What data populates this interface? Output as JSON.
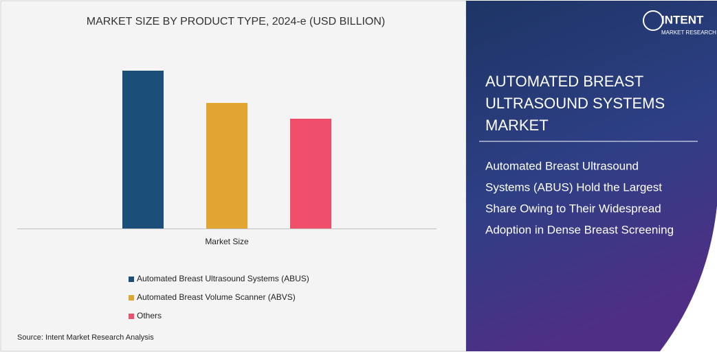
{
  "chart_data": {
    "type": "bar",
    "title": "MARKET SIZE BY PRODUCT TYPE, 2024-e (USD BILLION)",
    "categories": [
      "Market Size"
    ],
    "series": [
      {
        "name": "Automated Breast Ultrasound Systems (ABUS)",
        "color": "#1b4f7a",
        "values": [
          230
        ]
      },
      {
        "name": "Automated Breast Volume Scanner (ABVS)",
        "color": "#e3a531",
        "values": [
          183
        ]
      },
      {
        "name": "Others",
        "color": "#ef4f6a",
        "values": [
          160
        ]
      }
    ],
    "ylim": [
      0,
      250
    ],
    "source": "Source: Intent Market Research Analysis"
  },
  "panel": {
    "logo": "INTENT",
    "logo_sub": "MARKET RESEARCH",
    "title": [
      "AUTOMATED BREAST",
      "ULTRASOUND SYSTEMS",
      "MARKET"
    ],
    "subtitle": [
      "Automated Breast Ultrasound",
      "Systems (ABUS) Hold the Largest",
      "Share Owing to Their Widespread",
      "Adoption in Dense Breast Screening"
    ]
  }
}
